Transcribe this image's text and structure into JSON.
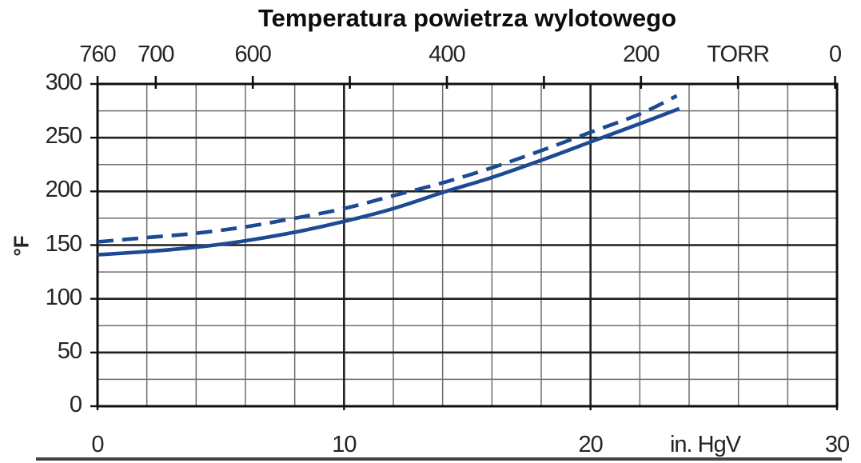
{
  "title": "Temperatura powietrza wylotowego",
  "colors": {
    "curve": "#1c4a94",
    "grid_minor": "#6e6e6e",
    "grid_major": "#1f1f1f",
    "frame": "#0f0f0f",
    "text": "#242424",
    "background": "#ffffff",
    "crop_strip": "#434343"
  },
  "axes": {
    "top": {
      "unit": "TORR",
      "tick_values_torr": [
        760,
        700,
        600,
        500,
        400,
        300,
        200,
        100,
        0
      ],
      "torr_per_in_hg": 25.4,
      "labels": [
        {
          "text": "760",
          "torr": 760
        },
        {
          "text": "700",
          "torr": 700
        },
        {
          "text": "600",
          "torr": 600
        },
        {
          "text": "400",
          "torr": 400
        },
        {
          "text": "200",
          "torr": 200
        },
        {
          "text": "TORR",
          "torr": 100
        },
        {
          "text": "0",
          "torr": 0
        }
      ]
    },
    "bottom": {
      "unit": "in. HgV",
      "range": [
        0,
        30
      ],
      "minor_step": 2,
      "major_ticks": [
        0,
        10,
        20,
        30
      ],
      "labels": [
        {
          "text": "0",
          "x": 0
        },
        {
          "text": "10",
          "x": 10
        },
        {
          "text": "20",
          "x": 20
        },
        {
          "text": "in. HgV",
          "x": 24.65
        },
        {
          "text": "30",
          "x": 30
        }
      ]
    },
    "left": {
      "unit": "°F",
      "range": [
        0,
        300
      ],
      "minor_step": 25,
      "major_ticks": [
        0,
        50,
        100,
        150,
        200,
        250,
        300
      ],
      "labels": [
        {
          "text": "300",
          "y": 300
        },
        {
          "text": "250",
          "y": 250
        },
        {
          "text": "200",
          "y": 200
        },
        {
          "text": "150",
          "y": 150
        },
        {
          "text": "100",
          "y": 100
        },
        {
          "text": "50",
          "y": 50
        },
        {
          "text": "0",
          "y": 0
        }
      ]
    }
  },
  "chart_data": {
    "type": "line",
    "title": "Temperatura powietrza wylotowego",
    "xlabel": "in. HgV",
    "x2label": "TORR",
    "ylabel": "°F",
    "xlim": [
      0,
      30
    ],
    "ylim": [
      0,
      300
    ],
    "grid": "on",
    "legend": "none",
    "x_major_step": 10,
    "x_minor_step": 2,
    "y_major_step": 50,
    "y_minor_step": 25,
    "series": [
      {
        "name": "solid-curve",
        "line_style": "solid",
        "x": [
          0,
          2,
          4,
          6,
          8,
          10,
          12,
          14,
          16,
          18,
          20,
          22,
          23.6
        ],
        "y": [
          141,
          144,
          148,
          154,
          162,
          172,
          184,
          199,
          213,
          229,
          246,
          263,
          277
        ]
      },
      {
        "name": "dashed-curve",
        "line_style": "dashed",
        "x": [
          0,
          2,
          4,
          6,
          8,
          10,
          12,
          14,
          16,
          18,
          20,
          22,
          23.5
        ],
        "y": [
          153,
          157,
          161,
          167,
          175,
          184,
          196,
          208,
          222,
          238,
          255,
          272,
          289
        ]
      }
    ]
  }
}
